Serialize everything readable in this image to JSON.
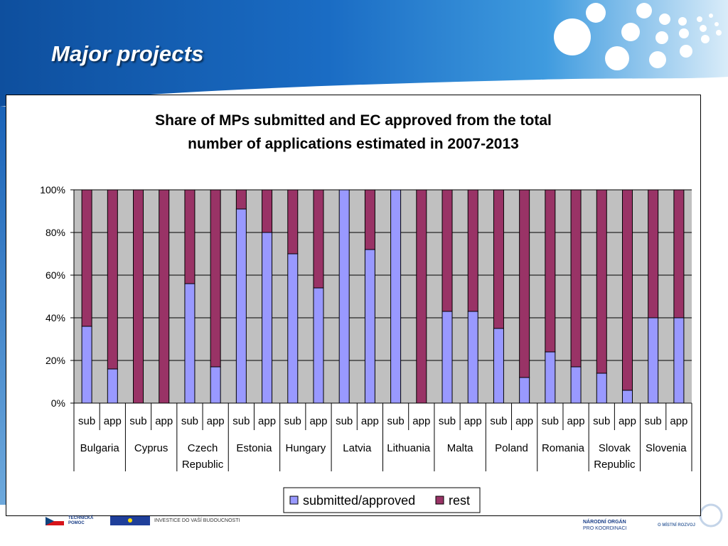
{
  "slide": {
    "title": "Major projects"
  },
  "footer": {
    "left_label_line1": "TECHNICKÁ",
    "left_label_line2": "POMOC",
    "eu_tagline": "INVESTICE DO VAŠÍ BUDOUCNOSTI",
    "authority_line1": "NÁRODNÍ ORGÁN",
    "authority_line2": "PRO KOORDINACI",
    "logo_text": "O MÍSTNÍ ROZVOJ"
  },
  "colors": {
    "accent_blue": "#1a63b8",
    "submitted": "#9999ff",
    "rest": "#993366",
    "plot_bg": "#c0c0c0"
  },
  "chart_data": {
    "type": "bar",
    "stacked": true,
    "percent": true,
    "title": "Share of MPs submitted and EC approved from the total number of applications estimated in 2007-2013",
    "title_lines": [
      "Share of MPs submitted and EC approved from the total",
      "number of applications estimated in 2007-2013"
    ],
    "ylim": [
      0,
      100
    ],
    "y_ticks": [
      "0%",
      "20%",
      "40%",
      "60%",
      "80%",
      "100%"
    ],
    "grid": true,
    "legend_position": "bottom",
    "groups": [
      {
        "name": "Bulgaria",
        "lines": [
          "Bulgaria"
        ]
      },
      {
        "name": "Cyprus",
        "lines": [
          "Cyprus"
        ]
      },
      {
        "name": "Czech Republic",
        "lines": [
          "Czech",
          "Republic"
        ]
      },
      {
        "name": "Estonia",
        "lines": [
          "Estonia"
        ]
      },
      {
        "name": "Hungary",
        "lines": [
          "Hungary"
        ]
      },
      {
        "name": "Latvia",
        "lines": [
          "Latvia"
        ]
      },
      {
        "name": "Lithuania",
        "lines": [
          "Lithuania"
        ]
      },
      {
        "name": "Malta",
        "lines": [
          "Malta"
        ]
      },
      {
        "name": "Poland",
        "lines": [
          "Poland"
        ]
      },
      {
        "name": "Romania",
        "lines": [
          "Romania"
        ]
      },
      {
        "name": "Slovak Republic",
        "lines": [
          "Slovak",
          "Republic"
        ]
      },
      {
        "name": "Slovenia",
        "lines": [
          "Slovenia"
        ]
      }
    ],
    "categories": [
      "sub",
      "app",
      "sub",
      "app",
      "sub",
      "app",
      "sub",
      "app",
      "sub",
      "app",
      "sub",
      "app",
      "sub",
      "app",
      "sub",
      "app",
      "sub",
      "app",
      "sub",
      "app",
      "sub",
      "app",
      "sub",
      "app"
    ],
    "series": [
      {
        "name": "submitted/approved",
        "values": [
          36,
          16,
          0,
          0,
          56,
          17,
          91,
          80,
          70,
          54,
          100,
          72,
          100,
          0,
          43,
          43,
          35,
          12,
          24,
          17,
          14,
          6,
          40,
          40
        ]
      },
      {
        "name": "rest",
        "values": [
          64,
          84,
          100,
          100,
          44,
          83,
          9,
          20,
          30,
          46,
          0,
          28,
          0,
          100,
          57,
          57,
          65,
          88,
          76,
          83,
          86,
          94,
          60,
          60
        ]
      }
    ]
  }
}
